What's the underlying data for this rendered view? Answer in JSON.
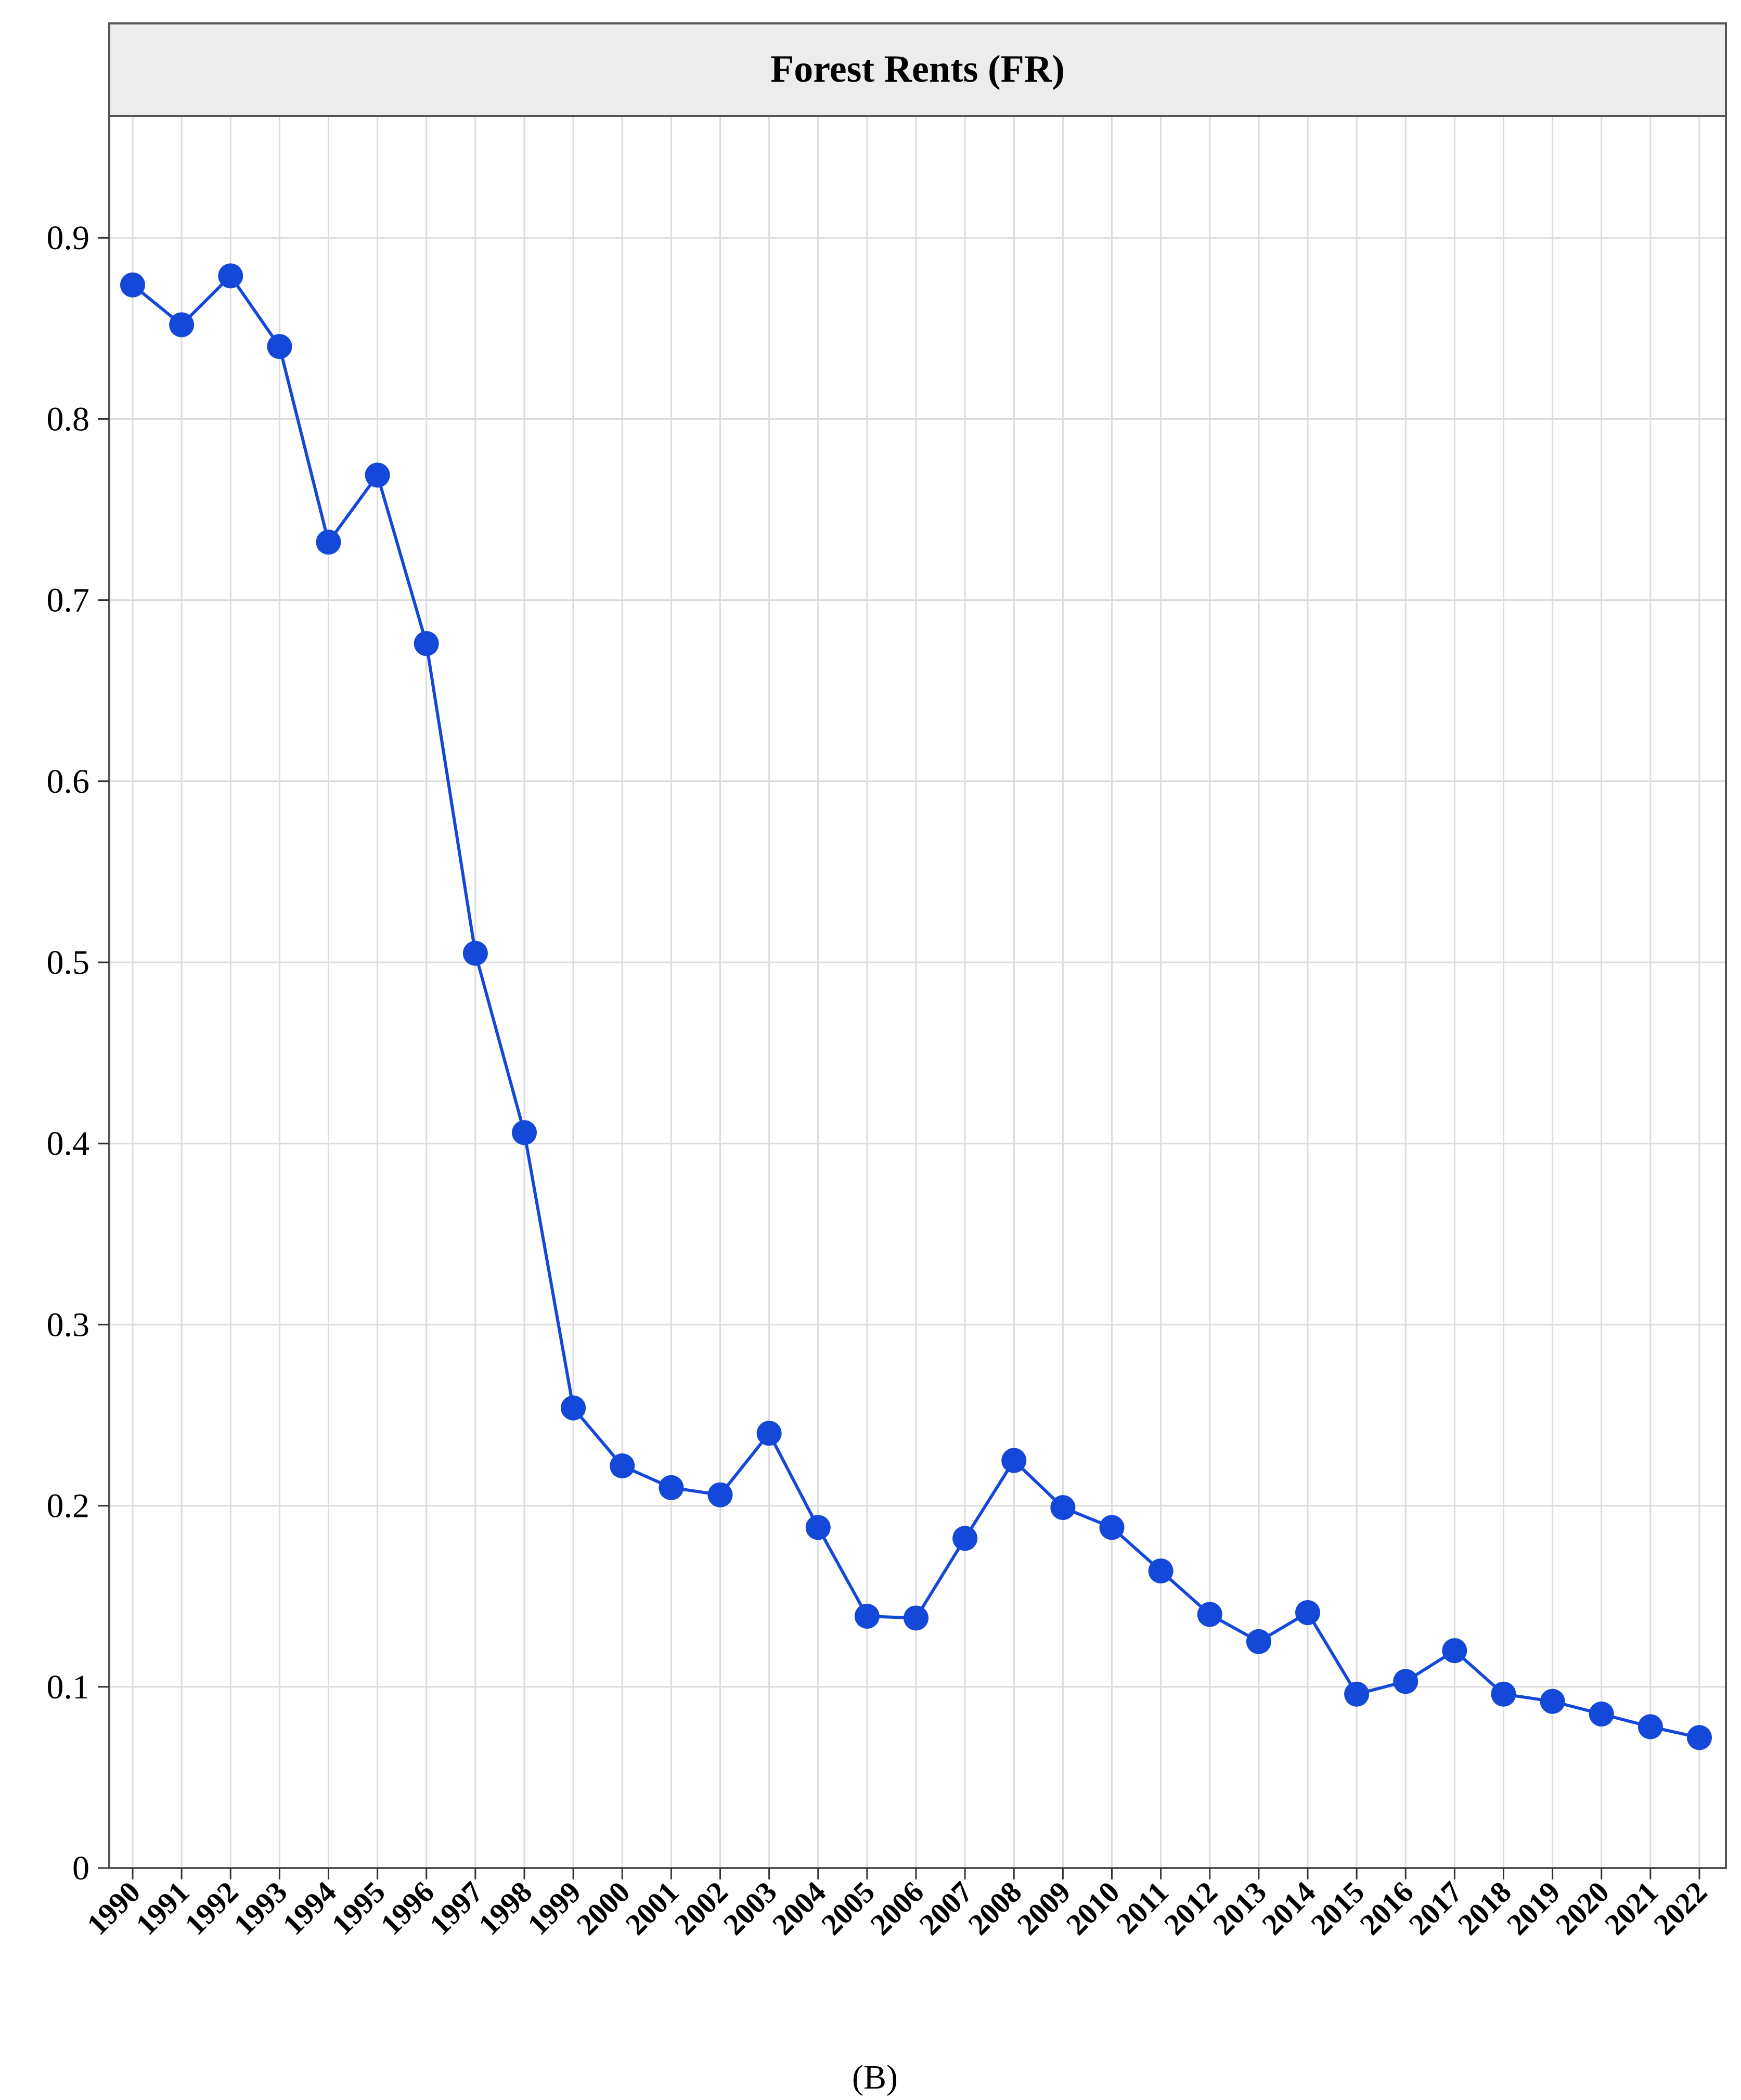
{
  "caption": "(B)",
  "colors": {
    "series": "#1448d8",
    "grid": "#dcdcdc",
    "header_bg": "#ececec",
    "border": "#555555"
  },
  "chart_data": {
    "type": "line",
    "title": "Forest Rents (FR)",
    "xlabel": "",
    "ylabel": "",
    "ylim": [
      0,
      0.97
    ],
    "y_ticks": [
      "0",
      "0.1",
      "0.2",
      "0.3",
      "0.4",
      "0.5",
      "0.6",
      "0.7",
      "0.8",
      "0.9"
    ],
    "grid": true,
    "legend": "none",
    "x": [
      "1990",
      "1991",
      "1992",
      "1993",
      "1994",
      "1995",
      "1996",
      "1997",
      "1998",
      "1999",
      "2000",
      "2001",
      "2002",
      "2003",
      "2004",
      "2005",
      "2006",
      "2007",
      "2008",
      "2009",
      "2010",
      "2011",
      "2012",
      "2013",
      "2014",
      "2015",
      "2016",
      "2017",
      "2018",
      "2019",
      "2020",
      "2021",
      "2022"
    ],
    "series": [
      {
        "values": [
          0.874,
          0.852,
          0.879,
          0.84,
          0.732,
          0.769,
          0.676,
          0.505,
          0.406,
          0.254,
          0.222,
          0.21,
          0.206,
          0.24,
          0.188,
          0.139,
          0.138,
          0.182,
          0.225,
          0.199,
          0.188,
          0.164,
          0.14,
          0.125,
          0.141,
          0.096,
          0.103,
          0.12,
          0.096,
          0.092,
          0.085,
          0.078,
          0.072
        ]
      }
    ]
  }
}
